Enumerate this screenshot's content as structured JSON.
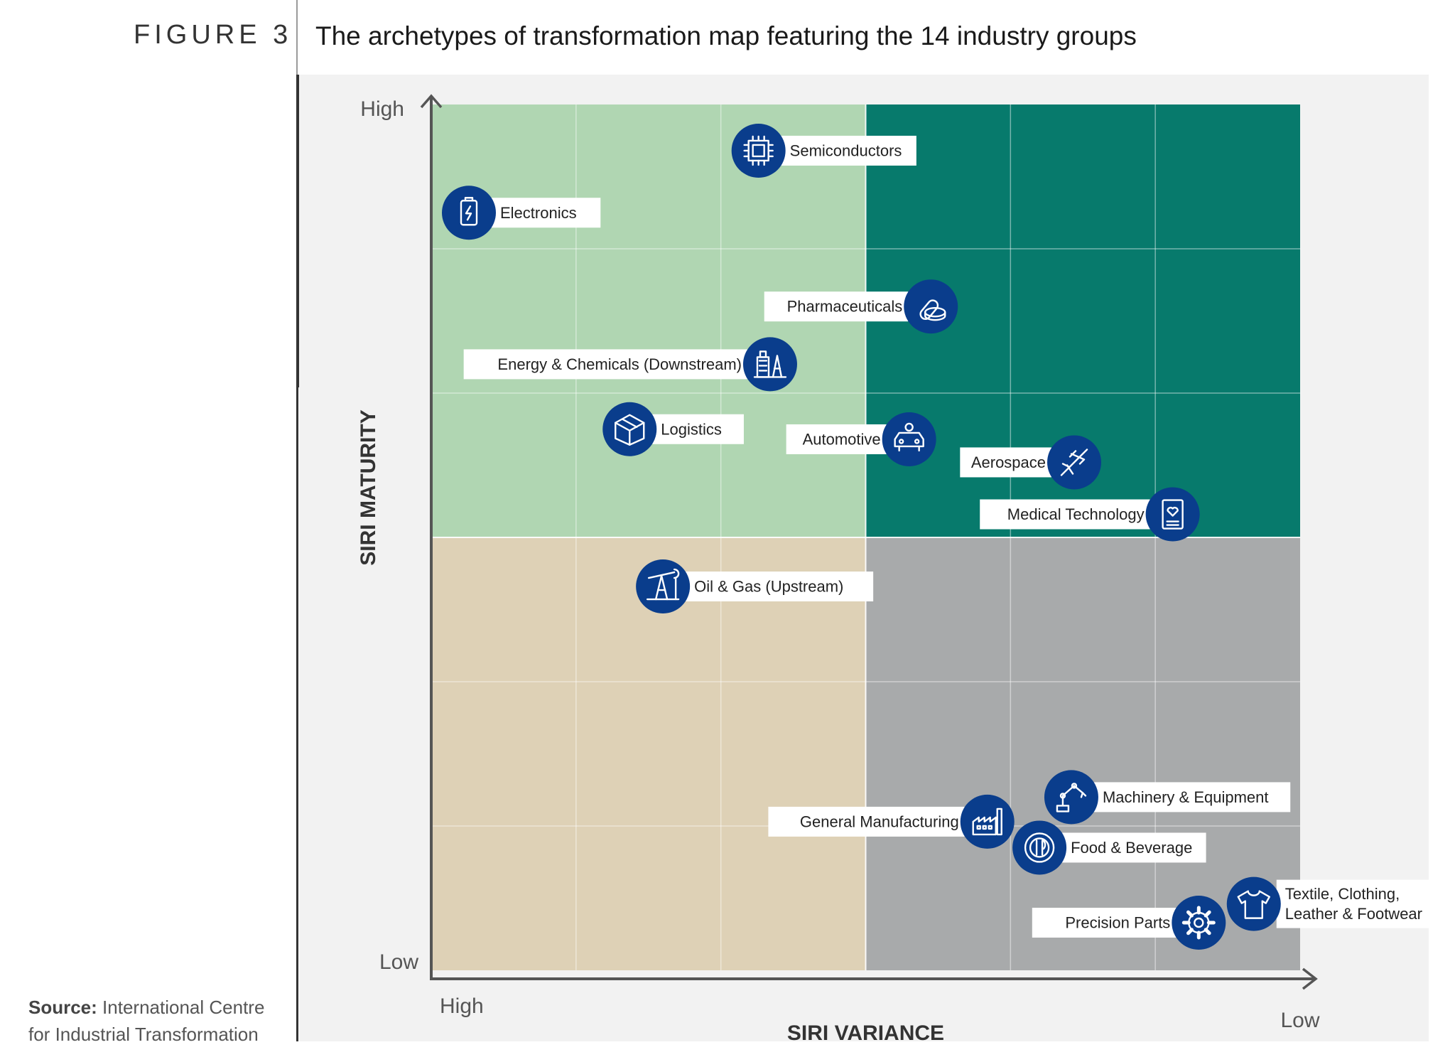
{
  "figure": {
    "label": "FIGURE 3",
    "title": "The archetypes of transformation map featuring the 14 industry groups"
  },
  "source": {
    "prefix": "Source:",
    "line1": "International Centre",
    "line2": "for Industrial Transformation"
  },
  "colors": {
    "light_green": "#b0d6b2",
    "teal": "#077a6c",
    "beige": "#ded1b6",
    "gray": "#a8aaab",
    "icon_blue": "#0a3d8c",
    "axis": "#555555"
  },
  "chart_data": {
    "type": "scatter",
    "title": "The archetypes of transformation map featuring the 14 industry groups",
    "xlabel": "SIRI VARIANCE",
    "ylabel": "SIRI MATURITY",
    "x_axis": {
      "start_label": "High",
      "end_label": "Low",
      "direction": "decreasing variance to the right"
    },
    "y_axis": {
      "start_label": "Low",
      "end_label": "High"
    },
    "xlim": [
      0,
      6
    ],
    "ylim": [
      0,
      6
    ],
    "grid": true,
    "quadrants": [
      {
        "position": "top-left",
        "color": "#b0d6b2"
      },
      {
        "position": "top-right",
        "color": "#077a6c"
      },
      {
        "position": "bottom-left",
        "color": "#ded1b6"
      },
      {
        "position": "bottom-right",
        "color": "#a8aaab"
      }
    ],
    "points": [
      {
        "label": "Semiconductors",
        "icon": "chip-icon",
        "x": 2.26,
        "y": 5.68,
        "label_side": "right"
      },
      {
        "label": "Electronics",
        "icon": "battery-icon",
        "x": 0.26,
        "y": 5.25,
        "label_side": "right"
      },
      {
        "label": "Pharmaceuticals",
        "icon": "pill-icon",
        "x": 3.45,
        "y": 4.6,
        "label_side": "left"
      },
      {
        "label": "Energy & Chemicals (Downstream)",
        "icon": "refinery-icon",
        "x": 2.34,
        "y": 4.2,
        "label_side": "left"
      },
      {
        "label": "Logistics",
        "icon": "box-icon",
        "x": 1.37,
        "y": 3.75,
        "label_side": "right"
      },
      {
        "label": "Automotive",
        "icon": "car-icon",
        "x": 3.3,
        "y": 3.68,
        "label_side": "left"
      },
      {
        "label": "Aerospace",
        "icon": "plane-icon",
        "x": 4.44,
        "y": 3.52,
        "label_side": "left"
      },
      {
        "label": "Medical Technology",
        "icon": "tablet-heart-icon",
        "x": 5.12,
        "y": 3.16,
        "label_side": "left"
      },
      {
        "label": "Oil & Gas (Upstream)",
        "icon": "pumpjack-icon",
        "x": 1.6,
        "y": 2.66,
        "label_side": "right"
      },
      {
        "label": "Machinery & Equipment",
        "icon": "robot-arm-icon",
        "x": 4.42,
        "y": 1.2,
        "label_side": "right"
      },
      {
        "label": "General Manufacturing",
        "icon": "factory-icon",
        "x": 3.84,
        "y": 1.03,
        "label_side": "left"
      },
      {
        "label": "Food & Beverage",
        "icon": "plate-icon",
        "x": 4.2,
        "y": 0.85,
        "label_side": "right"
      },
      {
        "label": "Precision Parts",
        "icon": "gear-icon",
        "x": 5.3,
        "y": 0.33,
        "label_side": "left"
      },
      {
        "label": [
          "Textile, Clothing,",
          "Leather & Footwear"
        ],
        "icon": "shirt-icon",
        "x": 5.68,
        "y": 0.46,
        "label_side": "right"
      }
    ]
  }
}
